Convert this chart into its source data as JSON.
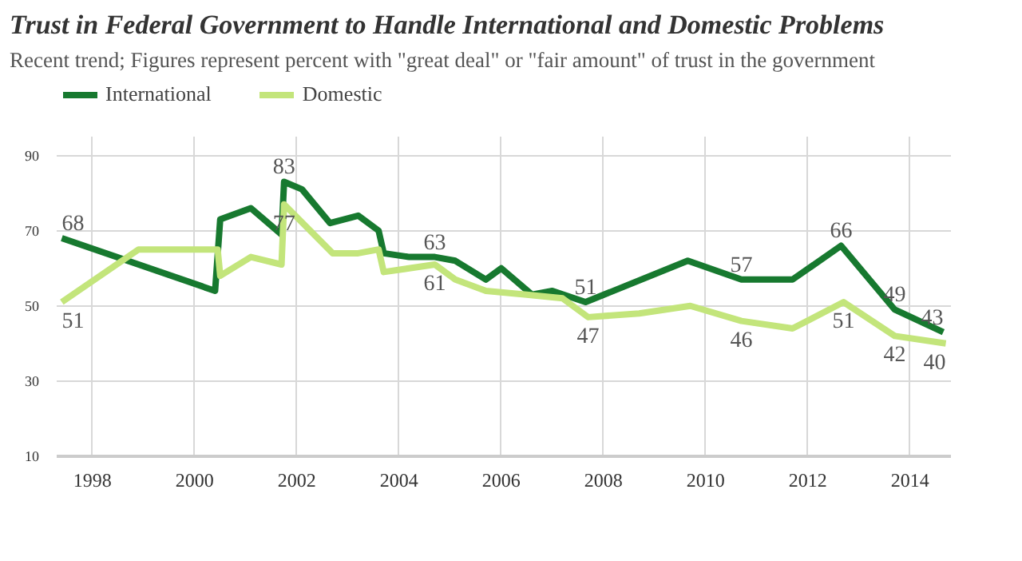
{
  "chart_data": {
    "type": "line",
    "title": "Trust in Federal Government to Handle International and Domestic Problems",
    "subtitle": "Recent trend; Figures represent percent with \"great deal\" or \"fair amount\" of trust in the government",
    "xlim": [
      1997.3,
      2014.8
    ],
    "xticks": [
      1998,
      2000,
      2002,
      2004,
      2006,
      2008,
      2010,
      2012,
      2014
    ],
    "ylim": [
      10,
      95
    ],
    "yticks": [
      10,
      30,
      50,
      70,
      90
    ],
    "grid": true,
    "legend": "top left",
    "marker": "none",
    "line_style": "solid",
    "series": [
      {
        "name": "International",
        "color": "#17792f",
        "x": [
          1997.4,
          2000.4,
          2000.5,
          2001.1,
          2001.7,
          2001.75,
          2002.1,
          2002.65,
          2003.2,
          2003.6,
          2003.7,
          2004.2,
          2004.7,
          2005.1,
          2005.7,
          2006.0,
          2006.6,
          2007.0,
          2007.65,
          2009.65,
          2010.7,
          2011.7,
          2012.65,
          2013.7,
          2014.65
        ],
        "values": [
          68,
          54,
          73,
          76,
          69,
          83,
          81,
          72,
          74,
          70,
          64,
          63,
          63,
          62,
          57,
          60,
          53,
          54,
          51,
          62,
          57,
          57,
          66,
          49,
          43
        ],
        "value_labels": [
          "68",
          null,
          null,
          null,
          null,
          "83",
          null,
          null,
          null,
          null,
          null,
          null,
          "63",
          null,
          null,
          null,
          null,
          null,
          "51",
          null,
          "57",
          null,
          "66",
          "49",
          "43"
        ]
      },
      {
        "name": "Domestic",
        "color": "#c3e57b",
        "x": [
          1997.4,
          1998.9,
          2000.45,
          2000.5,
          2001.1,
          2001.7,
          2001.75,
          2002.7,
          2003.2,
          2003.6,
          2003.7,
          2004.7,
          2005.1,
          2005.7,
          2006.5,
          2007.2,
          2007.7,
          2008.7,
          2009.7,
          2010.7,
          2011.7,
          2012.7,
          2013.7,
          2014.7
        ],
        "values": [
          51,
          65,
          65,
          58,
          63,
          61,
          77,
          64,
          64,
          65,
          59,
          61,
          57,
          54,
          53,
          52,
          47,
          48,
          50,
          46,
          44,
          51,
          42,
          40
        ],
        "value_labels": [
          "51",
          null,
          null,
          null,
          null,
          null,
          "77",
          null,
          null,
          null,
          null,
          "61",
          null,
          null,
          null,
          null,
          "47",
          null,
          null,
          "46",
          null,
          "51",
          "42",
          "40"
        ]
      }
    ]
  }
}
